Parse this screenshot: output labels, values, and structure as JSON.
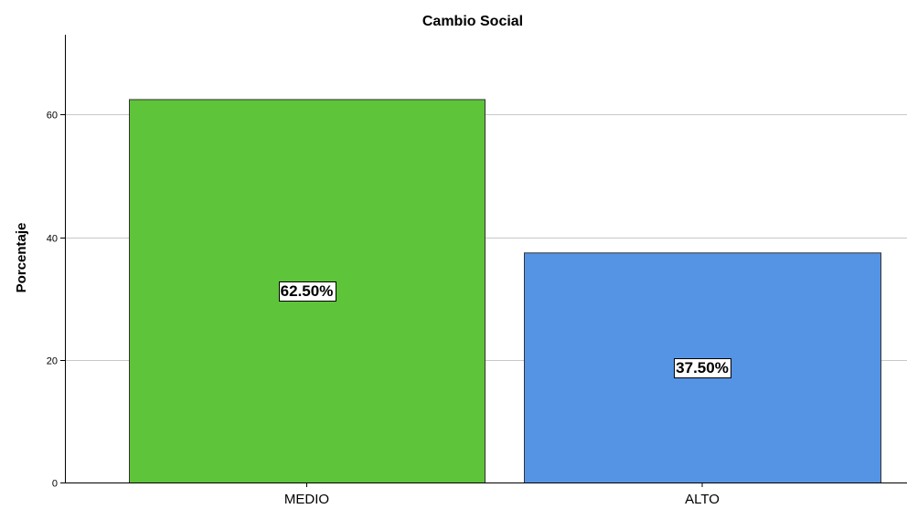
{
  "chart_data": {
    "type": "bar",
    "title": "Cambio Social",
    "xlabel": "",
    "ylabel": "Porcentaje",
    "categories": [
      "MEDIO",
      "ALTO"
    ],
    "values": [
      62.5,
      37.5
    ],
    "data_labels": [
      "62.50%",
      "37.50%"
    ],
    "colors": [
      "#5ec43a",
      "#5594e4"
    ],
    "ylim": [
      0,
      73
    ],
    "yticks": [
      0,
      20,
      40,
      60
    ],
    "grid": true,
    "legend": "none"
  }
}
